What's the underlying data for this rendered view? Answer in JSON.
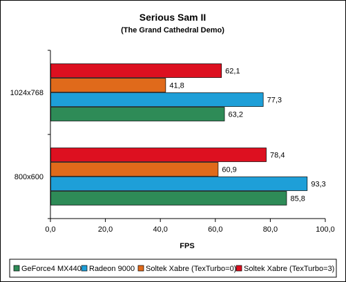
{
  "chart_data": {
    "type": "bar",
    "orientation": "horizontal",
    "title": "Serious Sam II",
    "subtitle": "(The Grand Cathedral Demo)",
    "xlabel": "FPS",
    "ylabel": "",
    "xlim": [
      0,
      100
    ],
    "x_ticks": [
      "0,0",
      "20,0",
      "40,0",
      "60,0",
      "80,0",
      "100,0"
    ],
    "categories": [
      "1024x768",
      "800x600"
    ],
    "series": [
      {
        "name": "GeForce4 MX440",
        "color": "#2e8b57",
        "values": [
          63.2,
          85.8
        ],
        "labels": [
          "63,2",
          "85,8"
        ]
      },
      {
        "name": "Radeon 9000",
        "color": "#1e9fd8",
        "values": [
          77.3,
          93.3
        ],
        "labels": [
          "77,3",
          "93,3"
        ]
      },
      {
        "name": "Soltek Xabre (TexTurbo=0)",
        "color": "#e06a1b",
        "values": [
          41.8,
          60.9
        ],
        "labels": [
          "41,8",
          "60,9"
        ]
      },
      {
        "name": "Soltek Xabre (TexTurbo=3)",
        "color": "#dd1020",
        "values": [
          62.1,
          78.4
        ],
        "labels": [
          "62,1",
          "78,4"
        ]
      }
    ],
    "grid": false,
    "legend_position": "bottom"
  }
}
